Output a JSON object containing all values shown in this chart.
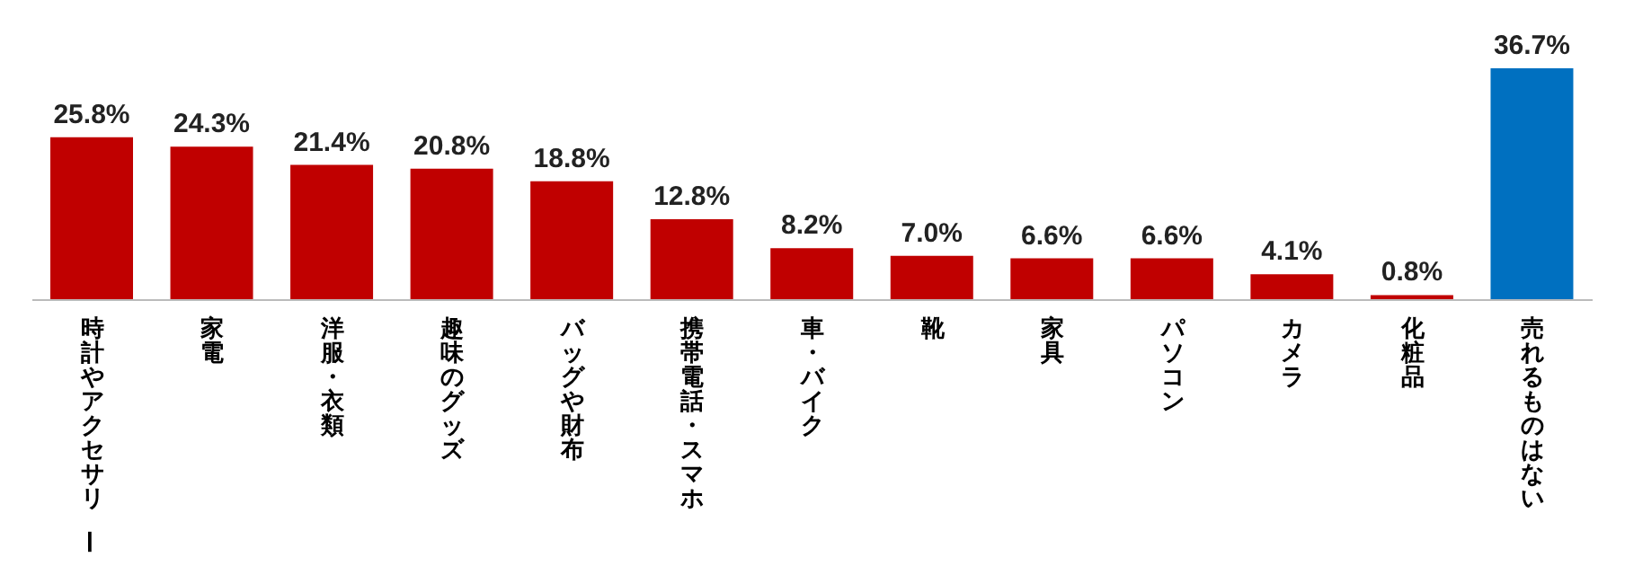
{
  "chart_data": {
    "type": "bar",
    "categories": [
      "時計やアクセサリー",
      "家電",
      "洋服・衣類",
      "趣味のグッズ",
      "バッグや財布",
      "携帯電話・スマホ",
      "車・バイク",
      "靴",
      "家具",
      "パソコン",
      "カメラ",
      "化粧品",
      "売れるものはない"
    ],
    "values": [
      25.8,
      24.3,
      21.4,
      20.8,
      18.8,
      12.8,
      8.2,
      7.0,
      6.6,
      6.6,
      4.1,
      0.8,
      36.7
    ],
    "value_labels": [
      "25.8%",
      "24.3%",
      "21.4%",
      "20.8%",
      "18.8%",
      "12.8%",
      "8.2%",
      "7.0%",
      "6.6%",
      "6.6%",
      "4.1%",
      "0.8%",
      "36.7%"
    ],
    "colors": [
      "#c00000",
      "#c00000",
      "#c00000",
      "#c00000",
      "#c00000",
      "#c00000",
      "#c00000",
      "#c00000",
      "#c00000",
      "#c00000",
      "#c00000",
      "#c00000",
      "#0070c0"
    ],
    "grid": false,
    "legend": false
  }
}
